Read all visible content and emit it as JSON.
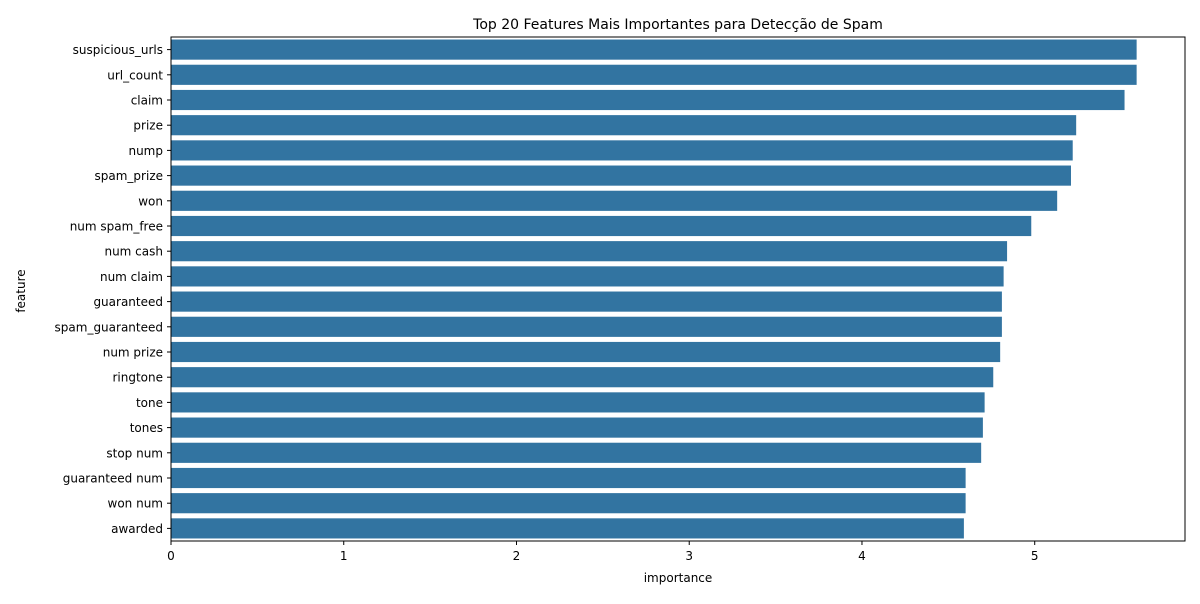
{
  "chart_data": {
    "type": "bar",
    "orientation": "horizontal",
    "title": "Top 20 Features Mais Importantes para Detecção de Spam",
    "xlabel": "importance",
    "ylabel": "feature",
    "categories": [
      "suspicious_urls",
      "url_count",
      "claim",
      "prize",
      "nump",
      "spam_prize",
      "won",
      "num spam_free",
      "num cash",
      "num claim",
      "guaranteed",
      "spam_guaranteed",
      "num prize",
      "ringtone",
      "tone",
      "tones",
      "stop num",
      "guaranteed num",
      "won num",
      "awarded"
    ],
    "values": [
      5.59,
      5.59,
      5.52,
      5.24,
      5.22,
      5.21,
      5.13,
      4.98,
      4.84,
      4.82,
      4.81,
      4.81,
      4.8,
      4.76,
      4.71,
      4.7,
      4.69,
      4.6,
      4.6,
      4.59
    ],
    "xlim": [
      0,
      5.87
    ],
    "xticks": [
      0,
      1,
      2,
      3,
      4,
      5
    ],
    "bar_color": "#3274a1",
    "grid": false
  }
}
